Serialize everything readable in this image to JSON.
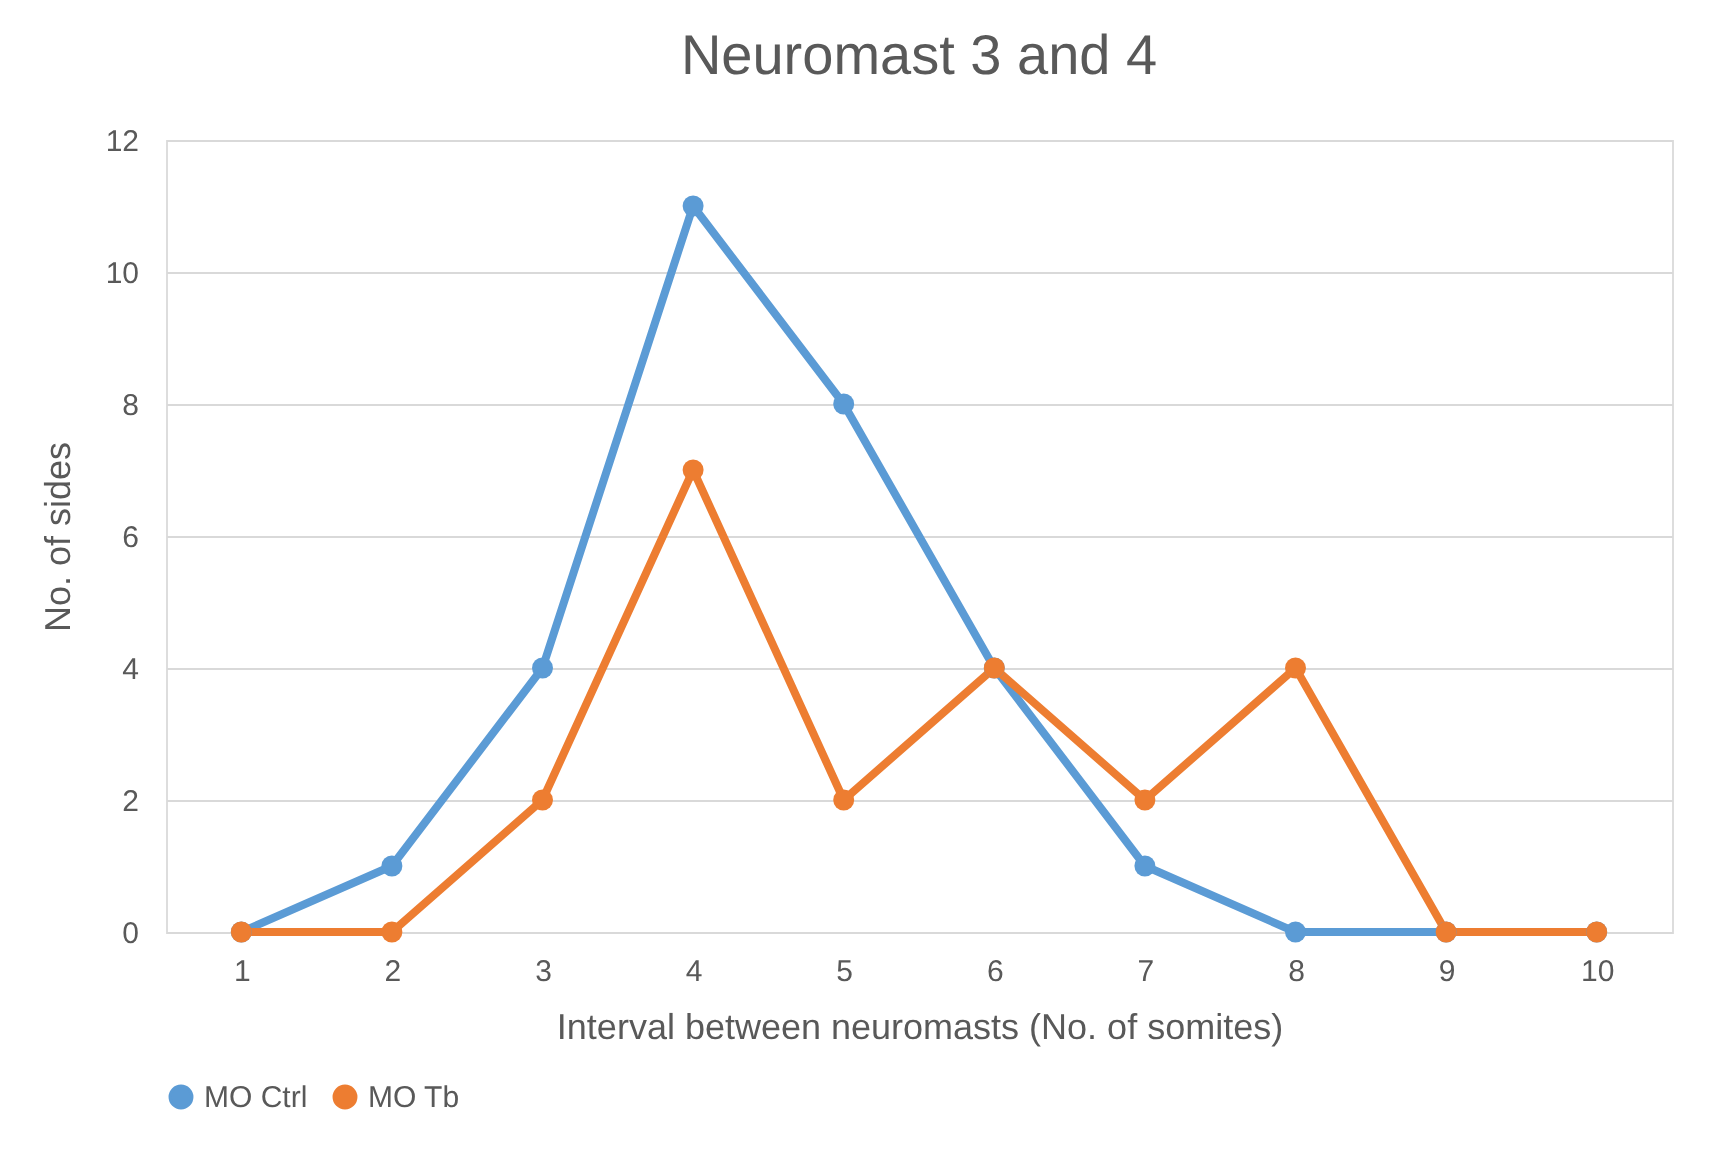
{
  "chart_data": {
    "type": "line",
    "title": "Neuromast 3 and 4",
    "xlabel": "Interval between neuromasts (No. of somites)",
    "ylabel": "No. of sides",
    "categories": [
      "1",
      "2",
      "3",
      "4",
      "5",
      "6",
      "7",
      "8",
      "9",
      "10"
    ],
    "series": [
      {
        "name": "MO Ctrl",
        "color": "#5b9bd5",
        "values": [
          0,
          1,
          4,
          11,
          8,
          4,
          1,
          0,
          0,
          0
        ]
      },
      {
        "name": "MO Tb",
        "color": "#ed7d31",
        "values": [
          0,
          0,
          2,
          7,
          2,
          4,
          2,
          4,
          0,
          0
        ]
      }
    ],
    "ylim": [
      0,
      12
    ],
    "yticks": [
      0,
      2,
      4,
      6,
      8,
      10,
      12
    ],
    "grid": "y",
    "legend": "bottom",
    "marker": "circle",
    "line_style": "solid"
  }
}
